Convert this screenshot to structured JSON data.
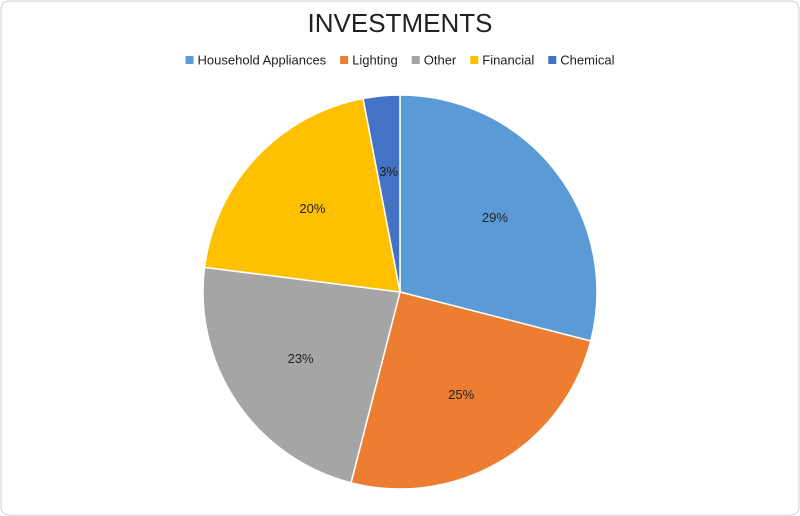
{
  "chart_data": {
    "type": "pie",
    "title": "INVESTMENTS",
    "categories": [
      "Household Appliances",
      "Lighting",
      "Other",
      "Financial",
      "Chemical"
    ],
    "values": [
      29,
      25,
      23,
      20,
      3
    ],
    "value_labels": [
      "29%",
      "25%",
      "23%",
      "20%",
      "3%"
    ],
    "colors": [
      "#5b9bd5",
      "#ed7d31",
      "#a5a5a5",
      "#ffc000",
      "#4472c4"
    ],
    "legend": "top"
  }
}
